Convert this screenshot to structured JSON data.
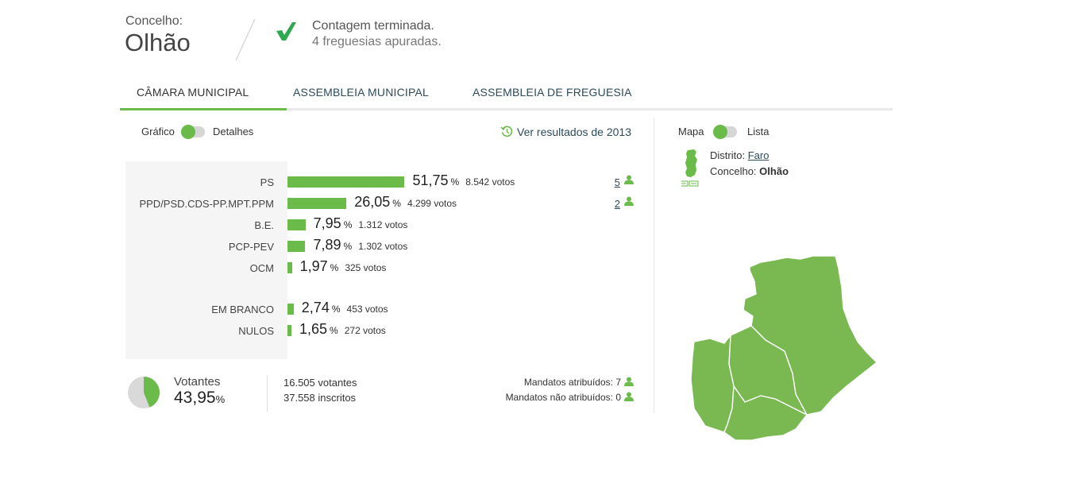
{
  "header": {
    "concelho_label": "Concelho:",
    "concelho_name": "Olhão",
    "status_title": "Contagem terminada.",
    "status_subtitle": "4 freguesias apuradas."
  },
  "tabs": [
    {
      "label": "CÂMARA MUNICIPAL",
      "active": true
    },
    {
      "label": "ASSEMBLEIA MUNICIPAL",
      "active": false
    },
    {
      "label": "ASSEMBLEIA DE FREGUESIA",
      "active": false
    }
  ],
  "view_toggle": {
    "left": "Gráfico",
    "right": "Detalhes"
  },
  "history_link": "Ver resultados de 2013",
  "results": [
    {
      "party": "PS",
      "pct": "51,75",
      "votes": "8.542 votos",
      "seats": "5",
      "value": 51.75
    },
    {
      "party": "PPD/PSD.CDS-PP.MPT.PPM",
      "pct": "26,05",
      "votes": "4.299 votos",
      "seats": "2",
      "value": 26.05
    },
    {
      "party": "B.E.",
      "pct": "7,95",
      "votes": "1.312 votos",
      "seats": "",
      "value": 7.95
    },
    {
      "party": "PCP-PEV",
      "pct": "7,89",
      "votes": "1.302 votos",
      "seats": "",
      "value": 7.89
    },
    {
      "party": "OCM",
      "pct": "1,97",
      "votes": "325 votos",
      "seats": "",
      "value": 1.97
    },
    {
      "party": "EM BRANCO",
      "pct": "2,74",
      "votes": "453 votos",
      "seats": "",
      "value": 2.74
    },
    {
      "party": "NULOS",
      "pct": "1,65",
      "votes": "272 votos",
      "seats": "",
      "value": 1.65
    }
  ],
  "pct_symbol": "%",
  "turnout": {
    "label": "Votantes",
    "pct": "43,95",
    "value": 43.95,
    "votantes": "16.505 votantes",
    "inscritos": "37.558 inscritos"
  },
  "mandates": {
    "assigned": "Mandatos atribuídos: 7",
    "unassigned": "Mandatos não atribuídos: 0"
  },
  "map_toggle": {
    "left": "Mapa",
    "right": "Lista"
  },
  "location": {
    "distrito_label": "Distrito:",
    "distrito_value": "Faro",
    "concelho_label": "Concelho:",
    "concelho_value": "Olhão"
  },
  "colors": {
    "accent": "#6abb4a",
    "link": "#2c4a5a"
  }
}
